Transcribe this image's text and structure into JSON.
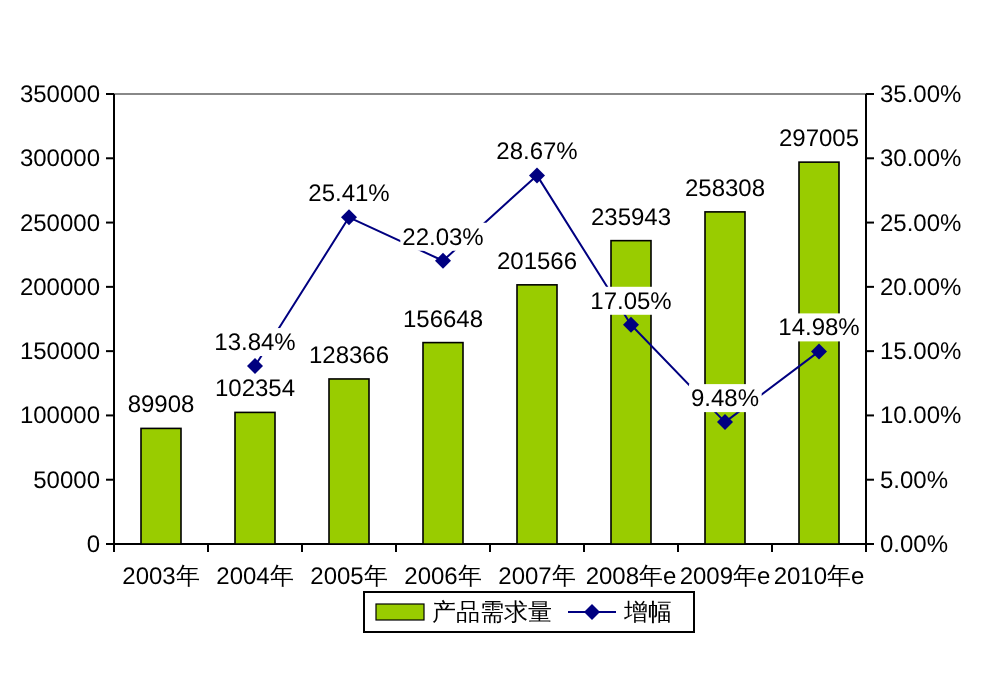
{
  "chart_data": {
    "type": "bar",
    "categories": [
      "2003年",
      "2004年",
      "2005年",
      "2006年",
      "2007年",
      "2008年e",
      "2009年e",
      "2010年e"
    ],
    "series": [
      {
        "name": "产品需求量",
        "color": "#99cc00",
        "values": [
          89908,
          102354,
          128366,
          156648,
          201566,
          235943,
          258308,
          297005
        ],
        "value_labels": [
          "89908",
          "102354",
          "128366",
          "156648",
          "201566",
          "235943",
          "258308",
          "297005"
        ]
      },
      {
        "name": "增幅",
        "type": "line",
        "axis": "y2",
        "color": "#000080",
        "marker": "diamond",
        "values": [
          null,
          13.84,
          25.41,
          22.03,
          28.67,
          17.05,
          9.48,
          14.98
        ],
        "value_labels": [
          null,
          "13.84%",
          "25.41%",
          "22.03%",
          "28.67%",
          "17.05%",
          "9.48%",
          "14.98%"
        ]
      }
    ],
    "ylim": [
      0,
      350000
    ],
    "yticks": [
      0,
      50000,
      100000,
      150000,
      200000,
      250000,
      300000,
      350000
    ],
    "y2lim": [
      0,
      35
    ],
    "y2ticks": [
      {
        "value": 0,
        "label": "0.00%"
      },
      {
        "value": 5,
        "label": "5.00%"
      },
      {
        "value": 10,
        "label": "10.00%"
      },
      {
        "value": 15,
        "label": "15.00%"
      },
      {
        "value": 20,
        "label": "20.00%"
      },
      {
        "value": 25,
        "label": "25.00%"
      },
      {
        "value": 30,
        "label": "30.00%"
      },
      {
        "value": 35,
        "label": "35.00%"
      }
    ],
    "legend": "bottom",
    "grid": false
  }
}
